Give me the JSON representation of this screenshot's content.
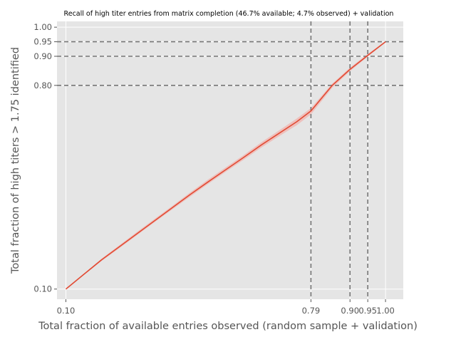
{
  "chart_data": {
    "type": "line",
    "title": "Recall of high titer entries from matrix completion (46.7% available; 4.7% observed) + validation",
    "xlabel": "Total fraction of available entries observed (random sample + validation)",
    "ylabel": "Total fraction of high titers > 1.75 identified",
    "xlim": [
      0.075,
      1.05
    ],
    "ylim": [
      0.065,
      1.02
    ],
    "x_ticks": [
      0.1,
      0.79,
      0.9,
      0.95,
      1.0
    ],
    "x_tick_labels": [
      "0.10",
      "0.79",
      "0.90",
      "0.95",
      "1.00"
    ],
    "y_ticks": [
      0.1,
      0.8,
      0.9,
      0.95,
      1.0
    ],
    "y_tick_labels": [
      "0.10",
      "0.80",
      "0.90",
      "0.95",
      "1.00"
    ],
    "grid": true,
    "reference_lines": {
      "vertical": [
        0.79,
        0.9,
        0.95
      ],
      "horizontal": [
        0.8,
        0.9,
        0.95
      ]
    },
    "series": [
      {
        "x": [
          0.1,
          0.15,
          0.2,
          0.25,
          0.3,
          0.35,
          0.4,
          0.45,
          0.5,
          0.55,
          0.6,
          0.65,
          0.7,
          0.75,
          0.79,
          0.85,
          0.9,
          0.95,
          1.0
        ],
        "y": [
          0.1,
          0.15,
          0.2,
          0.245,
          0.29,
          0.335,
          0.38,
          0.425,
          0.468,
          0.51,
          0.552,
          0.595,
          0.635,
          0.675,
          0.712,
          0.8,
          0.855,
          0.903,
          0.95
        ],
        "band_lower": [
          0.1,
          0.148,
          0.196,
          0.24,
          0.285,
          0.33,
          0.374,
          0.418,
          0.461,
          0.503,
          0.544,
          0.586,
          0.625,
          0.663,
          0.7,
          0.792,
          0.849,
          0.899,
          0.948
        ],
        "band_upper": [
          0.1,
          0.152,
          0.204,
          0.25,
          0.296,
          0.341,
          0.386,
          0.432,
          0.476,
          0.518,
          0.56,
          0.604,
          0.645,
          0.686,
          0.722,
          0.806,
          0.861,
          0.908,
          0.952
        ]
      }
    ],
    "colors": {
      "line": "#e24a33",
      "band": "#f4a6a0",
      "plot_background": "#e5e5e5",
      "grid": "#ffffff",
      "reference": "#777777",
      "text": "#555555",
      "title": "#000000"
    }
  }
}
